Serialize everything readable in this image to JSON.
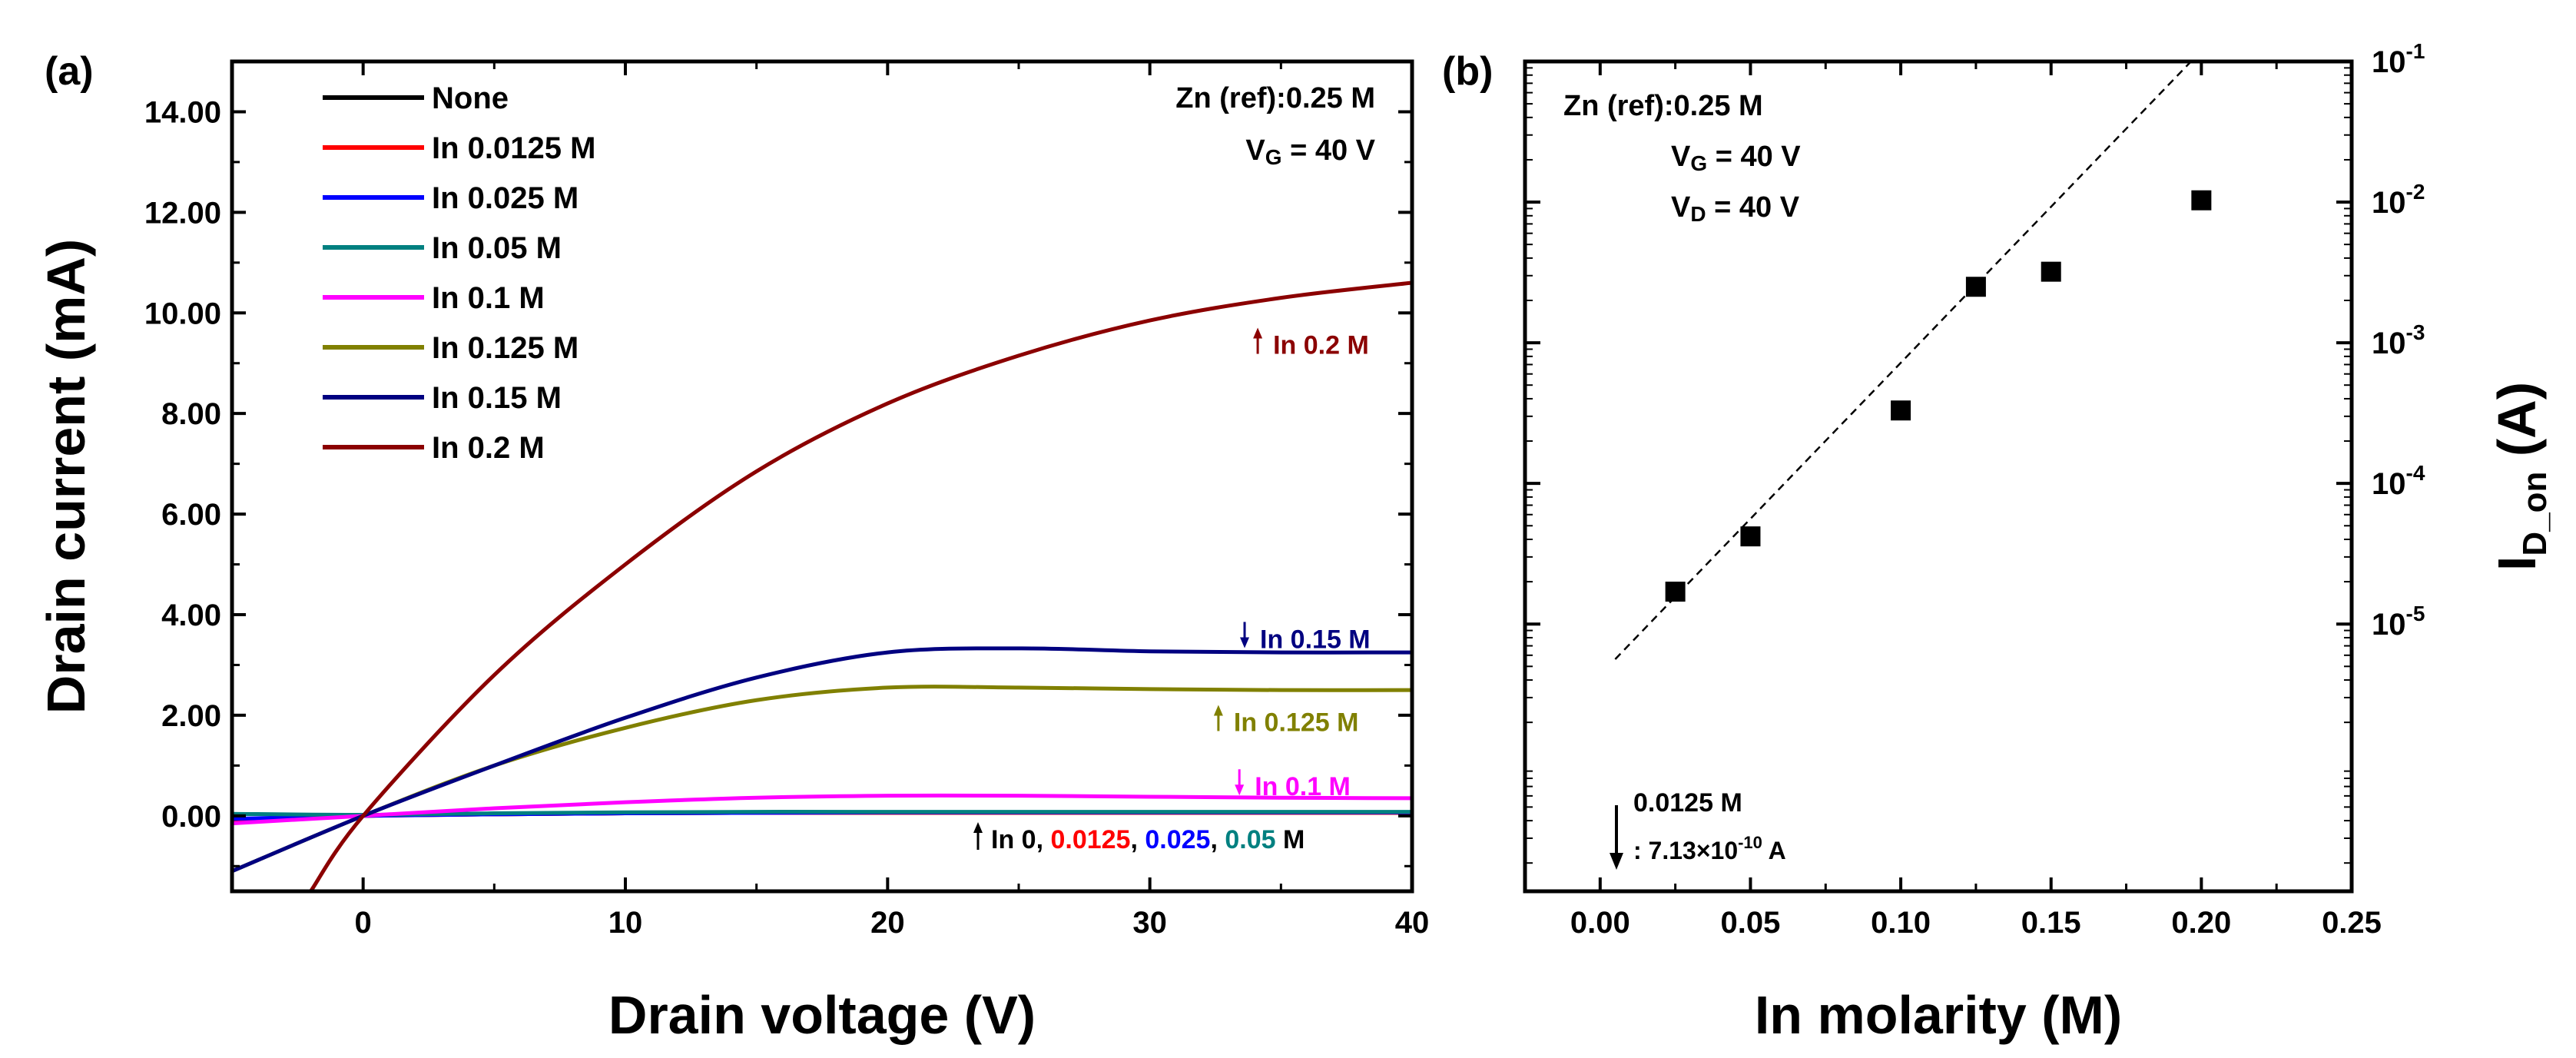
{
  "chart_data": [
    {
      "panel_label": "(a)",
      "type": "line",
      "xlabel": "Drain voltage (V)",
      "ylabel": "Drain current (mA)",
      "xlim": [
        -5,
        40
      ],
      "ylim": [
        -1.5,
        15.0
      ],
      "xticks": [
        0,
        10,
        20,
        30,
        40
      ],
      "xtick_labels": [
        "0",
        "10",
        "20",
        "30",
        "40"
      ],
      "yticks": [
        0,
        2,
        4,
        6,
        8,
        10,
        12,
        14
      ],
      "ytick_labels": [
        "0.00",
        "2.00",
        "4.00",
        "6.00",
        "8.00",
        "10.00",
        "12.00",
        "14.00"
      ],
      "condition_label": "Zn (ref):0.25 M",
      "vg_prefix": "V",
      "vg_sub": "G",
      "vg_suffix": " = 40 V",
      "series": [
        {
          "name": "None",
          "color": "#000000",
          "x": [
            -5,
            0,
            5,
            10,
            15,
            20,
            25,
            30,
            35,
            40
          ],
          "y": [
            -0.08,
            0.0,
            0.03,
            0.05,
            0.06,
            0.06,
            0.06,
            0.06,
            0.06,
            0.06
          ]
        },
        {
          "name": "In 0.0125 M",
          "color": "#ff0000",
          "x": [
            -5,
            0,
            5,
            10,
            15,
            20,
            25,
            30,
            35,
            40
          ],
          "y": [
            -0.07,
            0.0,
            0.03,
            0.05,
            0.06,
            0.06,
            0.06,
            0.06,
            0.06,
            0.06
          ]
        },
        {
          "name": "In 0.025 M",
          "color": "#0000ff",
          "x": [
            -5,
            0,
            5,
            10,
            15,
            20,
            25,
            30,
            35,
            40
          ],
          "y": [
            -0.06,
            0.0,
            0.03,
            0.05,
            0.06,
            0.07,
            0.07,
            0.07,
            0.07,
            0.07
          ]
        },
        {
          "name": "In 0.05 M",
          "color": "#008080",
          "x": [
            -5,
            0,
            5,
            10,
            15,
            20,
            25,
            30,
            35,
            40
          ],
          "y": [
            0.04,
            0.02,
            0.05,
            0.07,
            0.08,
            0.08,
            0.08,
            0.08,
            0.08,
            0.08
          ]
        },
        {
          "name": "In 0.1 M",
          "color": "#ff00ff",
          "x": [
            -5,
            0,
            5,
            10,
            15,
            20,
            25,
            30,
            35,
            40
          ],
          "y": [
            -0.15,
            0.0,
            0.15,
            0.27,
            0.36,
            0.4,
            0.4,
            0.38,
            0.36,
            0.35
          ]
        },
        {
          "name": "In 0.125 M",
          "color": "#808000",
          "x": [
            -5,
            0,
            5,
            10,
            15,
            20,
            25,
            30,
            35,
            40
          ],
          "y": [
            -1.1,
            0.0,
            1.0,
            1.75,
            2.3,
            2.55,
            2.55,
            2.52,
            2.5,
            2.5
          ]
        },
        {
          "name": "In 0.15 M",
          "color": "#000080",
          "x": [
            -5,
            0,
            5,
            10,
            15,
            20,
            25,
            30,
            35,
            40
          ],
          "y": [
            -1.1,
            0.0,
            1.0,
            1.95,
            2.75,
            3.25,
            3.33,
            3.27,
            3.25,
            3.25
          ]
        },
        {
          "name": "In 0.2 M",
          "color": "#8b0000",
          "x": [
            -2,
            0,
            5,
            10,
            15,
            20,
            25,
            30,
            35,
            40
          ],
          "y": [
            -1.5,
            0.0,
            2.8,
            5.0,
            6.85,
            8.2,
            9.15,
            9.85,
            10.3,
            10.6
          ]
        }
      ],
      "curve_labels": [
        {
          "text": "In 0.2 M",
          "arrow": "up",
          "color": "#8b0000",
          "x": 34.7,
          "y": 9.4
        },
        {
          "text": "In 0.15 M",
          "arrow": "down",
          "color": "#000080",
          "x": 34.2,
          "y": 3.55
        },
        {
          "text": "In 0.125 M",
          "arrow": "up",
          "color": "#808000",
          "x": 33.2,
          "y": 1.9
        },
        {
          "text": "In 0.1 M",
          "arrow": "down",
          "color": "#ff00ff",
          "x": 34.0,
          "y": 0.62
        }
      ],
      "bottom_note": {
        "prefix": "In 0",
        "sep": ", ",
        "items": [
          {
            "text": "0.0125",
            "color": "#ff0000"
          },
          {
            "text": "0.025",
            "color": "#0000ff"
          },
          {
            "text": "0.05",
            "color": "#008080"
          }
        ],
        "suffix": " M"
      }
    },
    {
      "panel_label": "(b)",
      "type": "scatter",
      "xlabel": "In molarity (M)",
      "ylabel": "I",
      "ylabel_sub": "D_on",
      "ylabel_suffix": " (A)",
      "xlim": [
        -0.025,
        0.25
      ],
      "xticks": [
        0.0,
        0.05,
        0.1,
        0.15,
        0.2,
        0.25
      ],
      "xtick_labels": [
        "0.00",
        "0.05",
        "0.10",
        "0.15",
        "0.20",
        "0.25"
      ],
      "ylim_log10": [
        -6.9,
        -1.0
      ],
      "yticks_log10": [
        -5,
        -4,
        -3,
        -2,
        -1
      ],
      "ytick_base": "10",
      "ytick_exponents": [
        "-5",
        "-4",
        "-3",
        "-2",
        "-1"
      ],
      "x": [
        0.025,
        0.05,
        0.1,
        0.125,
        0.15,
        0.2
      ],
      "y": [
        1.7e-05,
        4.2e-05,
        0.00033,
        0.0025,
        0.0032,
        0.0103
      ],
      "fit_line": {
        "x": [
          0.005,
          0.22
        ],
        "log10_y": [
          -5.25,
          -0.48
        ]
      },
      "info_lines": [
        "Zn (ref):0.25 M"
      ],
      "vg_prefix": "V",
      "vg_sub": "G",
      "vg_suffix": " = 40 V",
      "vd_prefix": "V",
      "vd_sub": "D",
      "vd_suffix": " = 40 V",
      "note_molarity": "0.0125 M",
      "note_current_prefix": ": 7.13×10",
      "note_current_exp": "-10",
      "note_current_suffix": " A"
    }
  ]
}
